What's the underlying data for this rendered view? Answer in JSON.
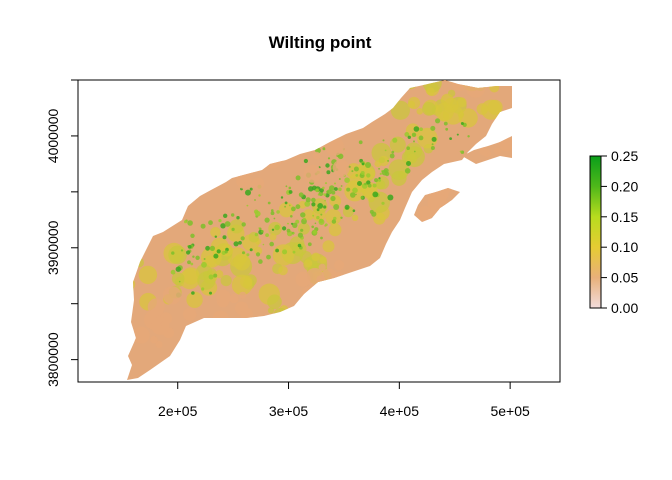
{
  "title": "Wilting point",
  "chart_data": {
    "type": "heatmap",
    "title": "Wilting point",
    "xlim": [
      110000,
      545000
    ],
    "ylim": [
      3780000,
      4050000
    ],
    "x_ticks": [
      {
        "value": 200000,
        "label": "2e+05"
      },
      {
        "value": 300000,
        "label": "3e+05"
      },
      {
        "value": 400000,
        "label": "4e+05"
      },
      {
        "value": 500000,
        "label": "5e+05"
      }
    ],
    "y_ticks": [
      {
        "value": 3800000,
        "label": "3800000"
      },
      {
        "value": 3850000,
        "label": ""
      },
      {
        "value": 3900000,
        "label": "3900000"
      },
      {
        "value": 3950000,
        "label": ""
      },
      {
        "value": 4000000,
        "label": "4000000"
      },
      {
        "value": 4050000,
        "label": ""
      }
    ],
    "legend": {
      "placement": "right",
      "min": 0.0,
      "max": 0.25,
      "ticks": [
        "0.00",
        "0.05",
        "0.10",
        "0.15",
        "0.20",
        "0.25"
      ],
      "colors": [
        "#f2dcdc",
        "#e8b07a",
        "#e6cc33",
        "#b8dc1e",
        "#4fb81a",
        "#0a9e1a"
      ]
    }
  }
}
